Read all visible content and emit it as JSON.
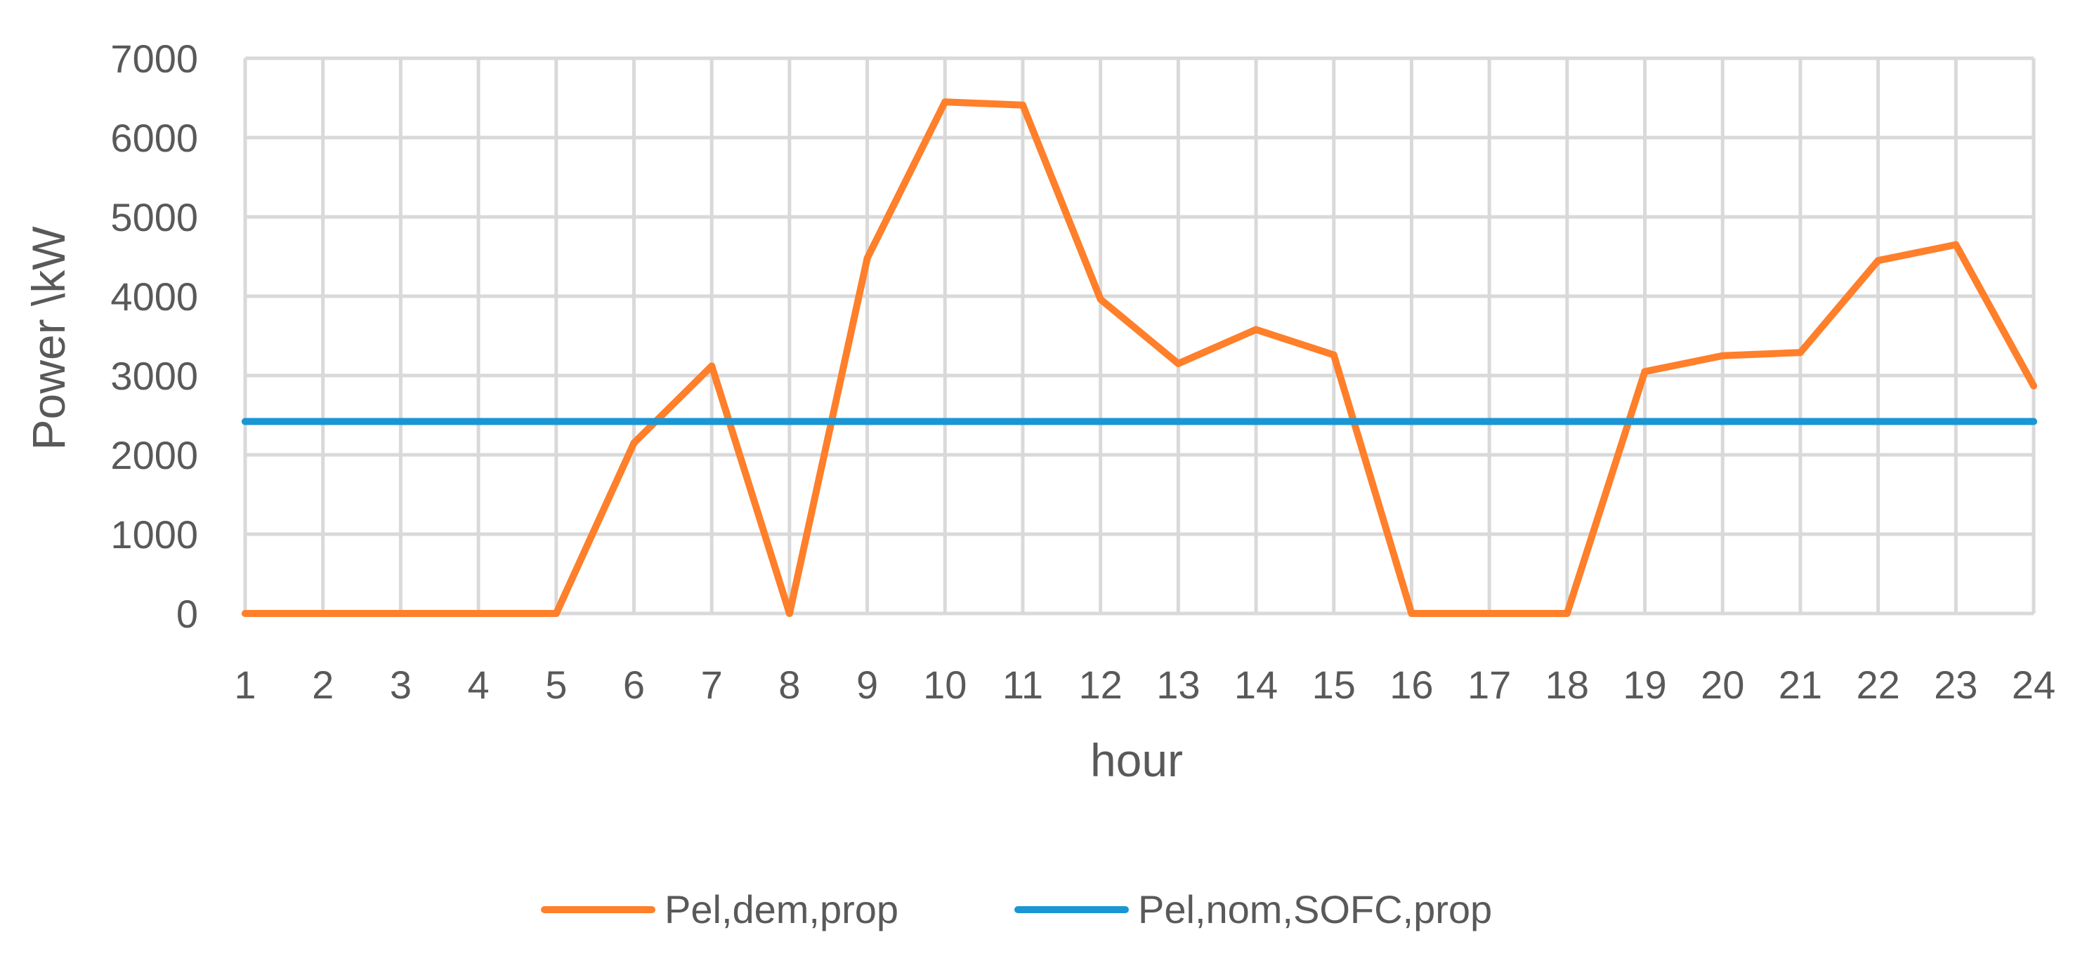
{
  "chart_data": {
    "type": "line",
    "xlabel": "hour",
    "ylabel": "Power \\kW",
    "ylim": [
      0,
      7000
    ],
    "y_ticks": [
      0,
      1000,
      2000,
      3000,
      4000,
      5000,
      6000,
      7000
    ],
    "categories": [
      "1",
      "2",
      "3",
      "4",
      "5",
      "6",
      "7",
      "8",
      "9",
      "10",
      "11",
      "12",
      "13",
      "14",
      "15",
      "16",
      "17",
      "18",
      "19",
      "20",
      "21",
      "22",
      "23",
      "24"
    ],
    "grid": true,
    "legend_position": "bottom",
    "series": [
      {
        "name": "Pel,dem,prop",
        "color": "#ff7f2a",
        "values": [
          0,
          0,
          0,
          0,
          0,
          2150,
          3120,
          0,
          4480,
          6450,
          6410,
          3960,
          3150,
          3580,
          3260,
          0,
          0,
          0,
          3050,
          3250,
          3290,
          4450,
          4650,
          2870
        ]
      },
      {
        "name": "Pel,nom,SOFC,prop",
        "color": "#1a96d4",
        "values": [
          2420,
          2420,
          2420,
          2420,
          2420,
          2420,
          2420,
          2420,
          2420,
          2420,
          2420,
          2420,
          2420,
          2420,
          2420,
          2420,
          2420,
          2420,
          2420,
          2420,
          2420,
          2420,
          2420,
          2420
        ]
      }
    ]
  }
}
